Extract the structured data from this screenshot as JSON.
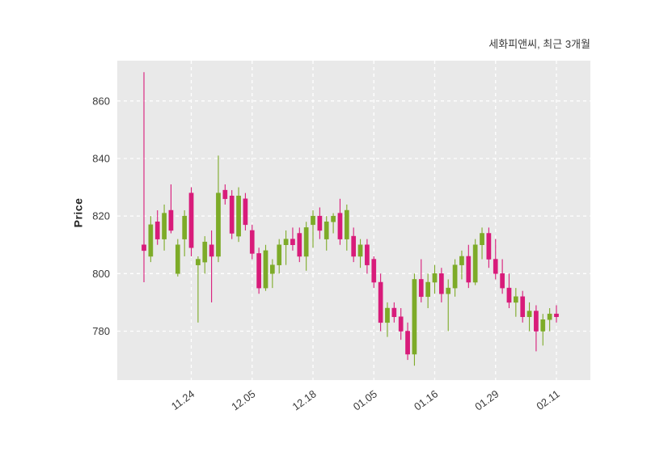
{
  "header": {
    "title": "세화피앤씨, 최근 3개월"
  },
  "chart_data": {
    "type": "candlestick",
    "title": "세화피앤씨, 최근 3개월",
    "ylabel": "Price",
    "ylim": [
      763,
      874
    ],
    "yticks": [
      780,
      800,
      820,
      840,
      860
    ],
    "xtick_labels": [
      "11.24",
      "12.05",
      "12.18",
      "01.05",
      "01.16",
      "01.29",
      "02.11"
    ],
    "xtick_indices": [
      7,
      16,
      25,
      34,
      43,
      52,
      61
    ],
    "grid": "dashed",
    "legend": "none",
    "colors": {
      "up": "#7dab28",
      "down": "#d81b7a",
      "plot_bg": "#e9e9e9",
      "grid": "#ffffff",
      "tick_text": "#3a3a3a"
    },
    "candles": [
      [
        "11.13",
        810,
        870,
        797,
        808
      ],
      [
        "11.14",
        806,
        820,
        804,
        817
      ],
      [
        "11.17",
        818,
        822,
        810,
        812
      ],
      [
        "11.18",
        812,
        824,
        808,
        821
      ],
      [
        "11.19",
        822,
        831,
        814,
        815
      ],
      [
        "11.20",
        800,
        812,
        799,
        810
      ],
      [
        "11.21",
        812,
        822,
        806,
        820
      ],
      [
        "11.24",
        828,
        830,
        806,
        809
      ],
      [
        "11.25",
        803,
        806,
        783,
        805
      ],
      [
        "11.26",
        804,
        813,
        800,
        811
      ],
      [
        "11.27",
        810,
        815,
        790,
        806
      ],
      [
        "11.28",
        806,
        841,
        804,
        828
      ],
      [
        "12.01",
        829,
        831,
        824,
        826
      ],
      [
        "12.02",
        827,
        829,
        812,
        814
      ],
      [
        "12.03",
        813,
        830,
        811,
        827
      ],
      [
        "12.04",
        826,
        828,
        815,
        817
      ],
      [
        "12.05",
        815,
        817,
        805,
        807
      ],
      [
        "12.08",
        807,
        809,
        793,
        795
      ],
      [
        "12.09",
        795,
        810,
        794,
        808
      ],
      [
        "12.10",
        800,
        805,
        795,
        803
      ],
      [
        "12.11",
        803,
        812,
        800,
        810
      ],
      [
        "12.12",
        810,
        815,
        803,
        812
      ],
      [
        "12.15",
        812,
        816,
        808,
        810
      ],
      [
        "12.16",
        814,
        816,
        804,
        806
      ],
      [
        "12.17",
        806,
        818,
        801,
        816
      ],
      [
        "12.18",
        817,
        822,
        809,
        820
      ],
      [
        "12.19",
        820,
        823,
        812,
        815
      ],
      [
        "12.22",
        812,
        820,
        808,
        818
      ],
      [
        "12.23",
        818,
        821,
        814,
        820
      ],
      [
        "12.24",
        821,
        826,
        810,
        812
      ],
      [
        "12.26",
        812,
        824,
        808,
        822
      ],
      [
        "12.29",
        813,
        816,
        804,
        806
      ],
      [
        "12.30",
        806,
        812,
        802,
        810
      ],
      [
        "01.02",
        810,
        812,
        800,
        803
      ],
      [
        "01.05",
        805,
        806,
        795,
        797
      ],
      [
        "01.06",
        797,
        800,
        780,
        783
      ],
      [
        "01.07",
        783,
        790,
        778,
        788
      ],
      [
        "01.08",
        788,
        790,
        783,
        785
      ],
      [
        "01.09",
        785,
        788,
        777,
        780
      ],
      [
        "01.12",
        780,
        783,
        770,
        772
      ],
      [
        "01.13",
        772,
        800,
        768,
        798
      ],
      [
        "01.14",
        798,
        805,
        790,
        792
      ],
      [
        "01.15",
        792,
        800,
        788,
        797
      ],
      [
        "01.16",
        797,
        803,
        793,
        800
      ],
      [
        "01.19",
        800,
        802,
        790,
        793
      ],
      [
        "01.20",
        793,
        798,
        780,
        795
      ],
      [
        "01.21",
        795,
        805,
        792,
        803
      ],
      [
        "01.22",
        803,
        808,
        798,
        806
      ],
      [
        "01.23",
        806,
        810,
        795,
        797
      ],
      [
        "01.26",
        797,
        812,
        796,
        810
      ],
      [
        "01.27",
        810,
        816,
        805,
        814
      ],
      [
        "01.28",
        814,
        816,
        802,
        805
      ],
      [
        "01.29",
        805,
        812,
        798,
        800
      ],
      [
        "01.30",
        800,
        805,
        793,
        795
      ],
      [
        "02.02",
        795,
        800,
        788,
        790
      ],
      [
        "02.03",
        790,
        795,
        785,
        792
      ],
      [
        "02.04",
        792,
        794,
        783,
        785
      ],
      [
        "02.05",
        785,
        790,
        780,
        787
      ],
      [
        "02.06",
        787,
        789,
        773,
        780
      ],
      [
        "02.09",
        780,
        786,
        775,
        784
      ],
      [
        "02.10",
        784,
        788,
        780,
        786
      ],
      [
        "02.11",
        786,
        789,
        783,
        785
      ]
    ]
  }
}
